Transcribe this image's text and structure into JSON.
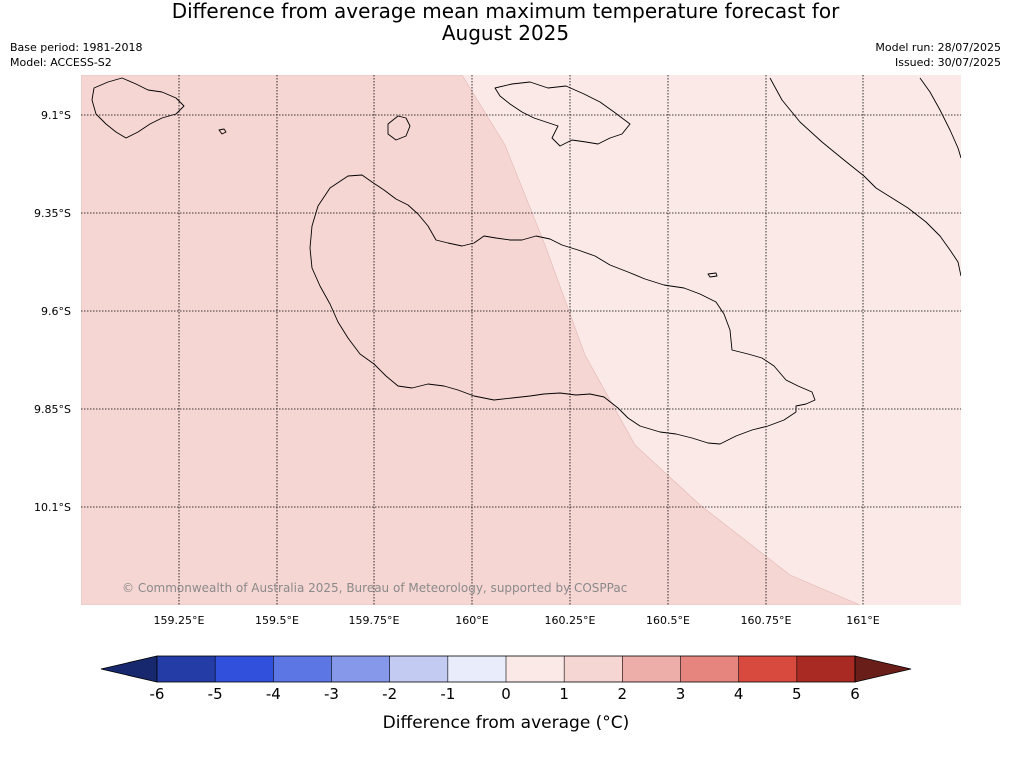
{
  "title": {
    "line1": "Difference from average mean maximum temperature forecast for",
    "line2": "August 2025"
  },
  "meta": {
    "base_period": "Base period: 1981-2018",
    "model": "Model: ACCESS-S2",
    "model_run": "Model run: 28/07/2025",
    "issued": "Issued: 30/07/2025"
  },
  "map": {
    "lat_labels": [
      "9.1°S",
      "9.35°S",
      "9.6°S",
      "9.85°S",
      "10.1°S"
    ],
    "lon_labels": [
      "159.25°E",
      "159.5°E",
      "159.75°E",
      "160°E",
      "160.25°E",
      "160.5°E",
      "160.75°E",
      "161°E"
    ],
    "copyright": "© Commonwealth of Australia 2025, Bureau of Meteorology, supported by COSPPac",
    "regions": [
      {
        "name": "1-2 °C anomaly",
        "color": "#f5d6d3"
      },
      {
        "name": "0-1 °C anomaly",
        "color": "#fbe9e8"
      }
    ]
  },
  "colorbar": {
    "ticks": [
      "-6",
      "-5",
      "-4",
      "-3",
      "-2",
      "-1",
      "0",
      "1",
      "2",
      "3",
      "4",
      "5",
      "6"
    ],
    "colors": [
      "#243da6",
      "#3151dc",
      "#5c76e3",
      "#8698ea",
      "#c3cbf3",
      "#e8ecfb",
      "#fbe9e8",
      "#f5d6d3",
      "#edaeaa",
      "#e5857e",
      "#d94a3e",
      "#a82a22"
    ],
    "low_extend_color": "#17286e",
    "high_extend_color": "#6a1e1a",
    "label": "Difference from average (°C)"
  }
}
